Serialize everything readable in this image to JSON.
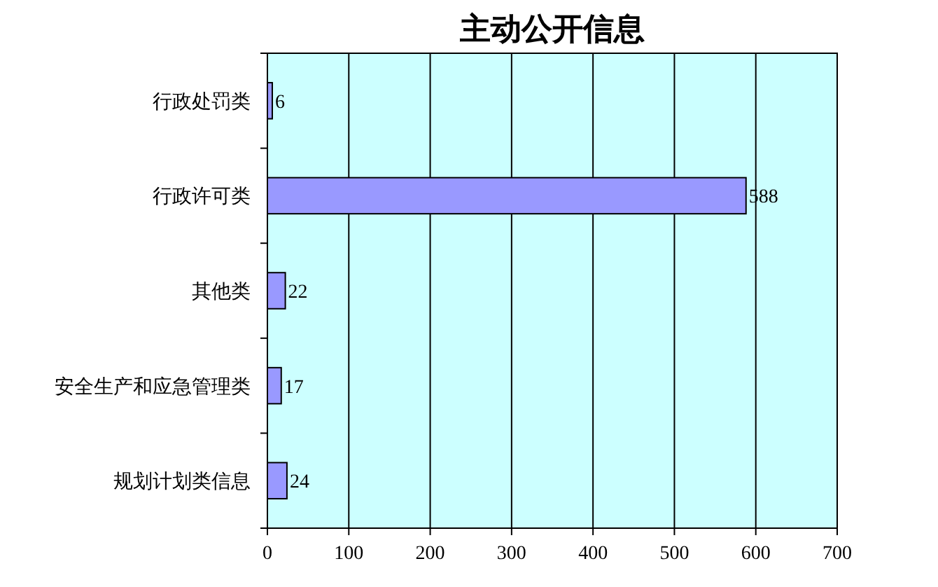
{
  "chart_data": {
    "type": "bar",
    "orientation": "horizontal",
    "title": "主动公开信息",
    "categories": [
      "行政处罚类",
      "行政许可类",
      "其他类",
      "安全生产和应急管理类",
      "规划计划类信息"
    ],
    "values": [
      6,
      588,
      22,
      17,
      24
    ],
    "color": "#9999ff",
    "xlim": [
      0,
      700
    ],
    "xticks": [
      0,
      100,
      200,
      300,
      400,
      500,
      600,
      700
    ],
    "grid": "x",
    "data_labels": true
  }
}
